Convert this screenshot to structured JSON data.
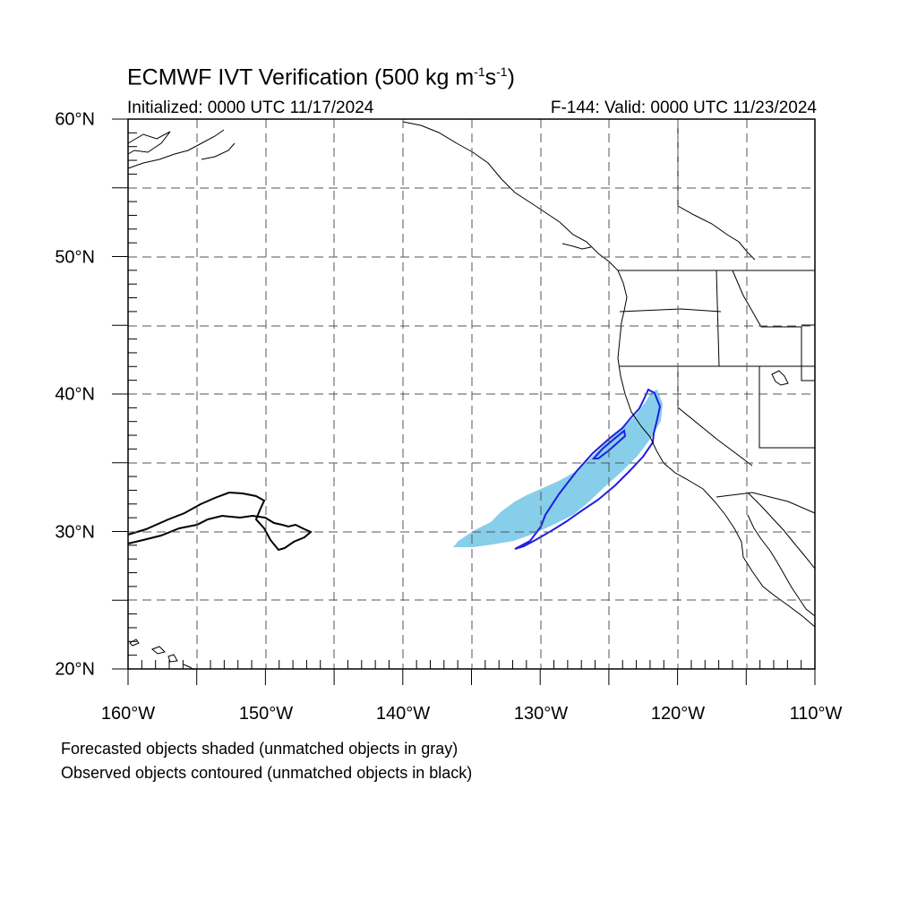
{
  "header": {
    "title_main": "ECMWF IVT Verification (500 kg m",
    "title_sup1": "-1",
    "title_mid": "s",
    "title_sup2": "-1",
    "title_end": ")",
    "initialized": "Initialized: 0000 UTC 11/17/2024",
    "valid": "F-144: Valid: 0000 UTC 11/23/2024"
  },
  "axes": {
    "lat_labels": [
      "60°N",
      "50°N",
      "40°N",
      "30°N",
      "20°N"
    ],
    "lon_labels": [
      "160°W",
      "150°W",
      "140°W",
      "130°W",
      "120°W",
      "110°W"
    ],
    "lat_range": [
      20,
      60
    ],
    "lon_range": [
      -160,
      -110
    ]
  },
  "notes": {
    "line1": "Forecasted objects shaded (unmatched objects in gray)",
    "line2": "Observed objects contoured (unmatched objects in black)"
  },
  "colors": {
    "forecast_shade": "#87ceeb",
    "observed_matched": "#1f1fe0",
    "observed_unmatched": "#000000",
    "grid": "#555555"
  }
}
